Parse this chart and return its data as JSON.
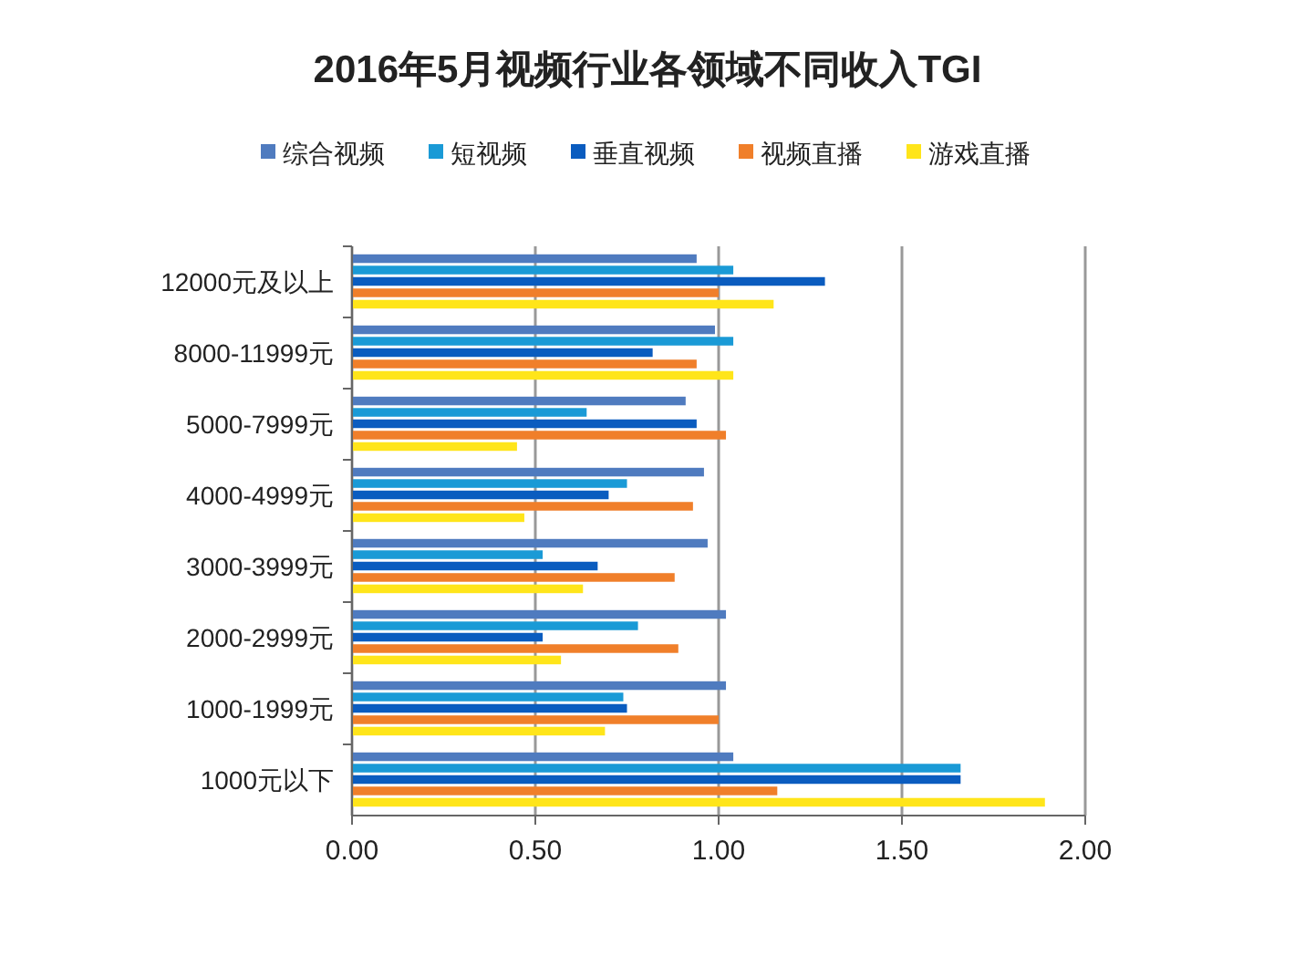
{
  "chart_data": {
    "type": "bar",
    "orientation": "horizontal",
    "title": "2016年5月视频行业各领域不同收入TGI",
    "categories": [
      "12000元及以上",
      "8000-11999元",
      "5000-7999元",
      "4000-4999元",
      "3000-3999元",
      "2000-2999元",
      "1000-1999元",
      "1000元以下"
    ],
    "series": [
      {
        "name": "综合视频",
        "color": "#4f7bbf",
        "values": [
          0.94,
          0.99,
          0.91,
          0.96,
          0.97,
          1.02,
          1.02,
          1.04
        ]
      },
      {
        "name": "短视频",
        "color": "#1a9ad6",
        "values": [
          1.04,
          1.04,
          0.64,
          0.75,
          0.52,
          0.78,
          0.74,
          1.66
        ]
      },
      {
        "name": "垂直视频",
        "color": "#0a5cbf",
        "values": [
          1.29,
          0.82,
          0.94,
          0.7,
          0.67,
          0.52,
          0.75,
          1.66
        ]
      },
      {
        "name": "视频直播",
        "color": "#f07f2a",
        "values": [
          1.0,
          0.94,
          1.02,
          0.93,
          0.88,
          0.89,
          1.0,
          1.16
        ]
      },
      {
        "name": "游戏直播",
        "color": "#ffe51a",
        "values": [
          1.15,
          1.04,
          0.45,
          0.47,
          0.63,
          0.57,
          0.69,
          1.89
        ]
      }
    ],
    "xlim": [
      0,
      2
    ],
    "xticks": [
      {
        "value": 0,
        "label": "0.00"
      },
      {
        "value": 0.5,
        "label": "0.50"
      },
      {
        "value": 1,
        "label": "1.00"
      },
      {
        "value": 1.5,
        "label": "1.50"
      },
      {
        "value": 2,
        "label": "2.00"
      }
    ],
    "grid": "x",
    "legend": "top"
  }
}
